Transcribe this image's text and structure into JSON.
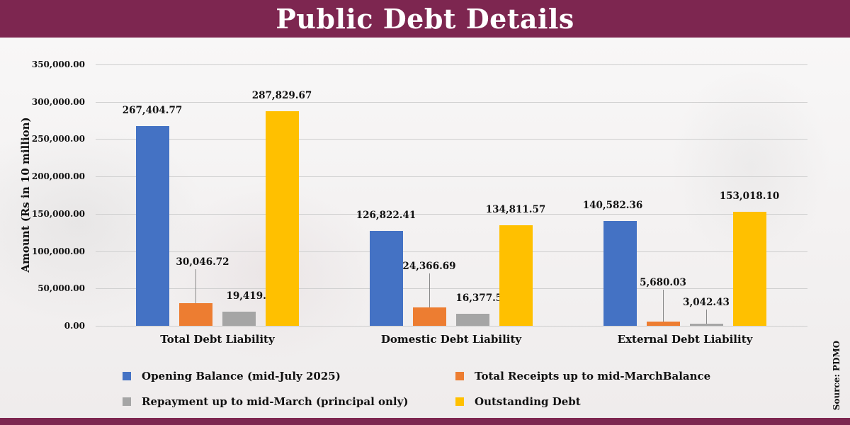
{
  "header": {
    "title": "Public Debt Details"
  },
  "source": "Source: PDMO",
  "chart_data": {
    "type": "bar",
    "title": "Public Debt Details",
    "xlabel": "",
    "ylabel": "Amount (Rs in 10 million)",
    "ylim": [
      0,
      350000
    ],
    "yticks": [
      "0.00",
      "50,000.00",
      "100,000.00",
      "150,000.00",
      "200,000.00",
      "250,000.00",
      "300,000.00",
      "350,000.00"
    ],
    "grid": true,
    "legend_position": "bottom",
    "categories": [
      "Total Debt Liability",
      "Domestic Debt Liability",
      "External Debt Liability"
    ],
    "series": [
      {
        "name": "Opening Balance (mid-July 2025)",
        "color": "#4472c4",
        "values": [
          267404.77,
          126822.41,
          140582.36
        ],
        "labels": [
          "267,404.77",
          "126,822.41",
          "140,582.36"
        ]
      },
      {
        "name": "Total Receipts up to mid-MarchBalance",
        "color": "#ed7d31",
        "values": [
          30046.72,
          24366.69,
          5680.03
        ],
        "labels": [
          "30,046.72",
          "24,366.69",
          "5,680.03"
        ]
      },
      {
        "name": "Repayment up to mid-March (principal only)",
        "color": "#a5a5a5",
        "values": [
          19419.96,
          16377.53,
          3042.43
        ],
        "labels": [
          "19,419.96",
          "16,377.53",
          "3,042.43"
        ]
      },
      {
        "name": "Outstanding Debt",
        "color": "#ffc000",
        "values": [
          287829.67,
          134811.57,
          153018.1
        ],
        "labels": [
          "287,829.67",
          "134,811.57",
          "153,018.10"
        ]
      }
    ]
  }
}
